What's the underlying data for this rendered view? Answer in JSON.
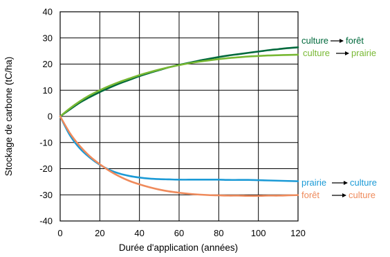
{
  "chart_data": {
    "type": "line",
    "title": "",
    "xlabel": "Durée d'application (années)",
    "ylabel": "Stockage de carbone (tC/ha)",
    "xlim": [
      0,
      120
    ],
    "ylim": [
      -40,
      40
    ],
    "xticks": [
      0,
      20,
      40,
      60,
      80,
      100,
      120
    ],
    "yticks": [
      -40,
      -30,
      -20,
      -10,
      0,
      10,
      20,
      30,
      40
    ],
    "grid": true,
    "series": [
      {
        "name": "culture → forêt",
        "from": "culture",
        "to": "forêt",
        "color": "#00693c",
        "x": [
          0,
          5,
          10,
          15,
          20,
          25,
          30,
          35,
          40,
          45,
          50,
          55,
          60,
          65,
          70,
          75,
          80,
          85,
          90,
          95,
          100,
          105,
          110,
          115,
          120
        ],
        "y": [
          0,
          2.7,
          5.3,
          7.4,
          9.3,
          11.0,
          12.6,
          14.0,
          15.4,
          16.6,
          17.7,
          18.8,
          19.7,
          20.5,
          21.3,
          22.0,
          22.7,
          23.3,
          23.8,
          24.3,
          24.8,
          25.3,
          25.7,
          26.1,
          26.4
        ]
      },
      {
        "name": "culture → prairie",
        "from": "culture",
        "to": "prairie",
        "color": "#78b833",
        "x": [
          0,
          5,
          10,
          15,
          20,
          25,
          30,
          35,
          40,
          45,
          50,
          55,
          60,
          65,
          70,
          75,
          80,
          85,
          90,
          95,
          100,
          105,
          110,
          115,
          120
        ],
        "y": [
          0,
          3.1,
          5.8,
          8.1,
          10.0,
          11.7,
          13.2,
          14.5,
          15.8,
          16.9,
          17.9,
          18.8,
          19.6,
          20.3,
          20.9,
          21.4,
          21.9,
          22.3,
          22.6,
          22.9,
          23.1,
          23.3,
          23.4,
          23.5,
          23.6
        ]
      },
      {
        "name": "prairie → culture",
        "from": "prairie",
        "to": "culture",
        "color": "#1b9ad6",
        "x": [
          0,
          5,
          10,
          15,
          20,
          25,
          30,
          35,
          40,
          45,
          50,
          55,
          60,
          65,
          70,
          75,
          80,
          85,
          90,
          95,
          100,
          105,
          110,
          115,
          120
        ],
        "y": [
          0,
          -7.3,
          -12.3,
          -15.8,
          -18.5,
          -20.5,
          -21.9,
          -22.8,
          -23.4,
          -23.8,
          -24.0,
          -24.1,
          -24.2,
          -24.2,
          -24.2,
          -24.2,
          -24.2,
          -24.3,
          -24.3,
          -24.3,
          -24.4,
          -24.5,
          -24.6,
          -24.7,
          -24.8
        ]
      },
      {
        "name": "forêt → culture",
        "from": "forêt",
        "to": "culture",
        "color": "#ef8a5b",
        "x": [
          0,
          5,
          10,
          15,
          20,
          25,
          30,
          35,
          40,
          45,
          50,
          55,
          60,
          65,
          70,
          75,
          80,
          85,
          90,
          95,
          100,
          105,
          110,
          115,
          120
        ],
        "y": [
          0,
          -6.5,
          -11.4,
          -15.3,
          -18.3,
          -20.9,
          -23.0,
          -24.7,
          -26.0,
          -27.1,
          -28.0,
          -28.7,
          -29.2,
          -29.6,
          -29.9,
          -30.1,
          -30.2,
          -30.3,
          -30.3,
          -30.4,
          -30.4,
          -30.3,
          -30.3,
          -30.2,
          -30.1
        ]
      }
    ]
  }
}
